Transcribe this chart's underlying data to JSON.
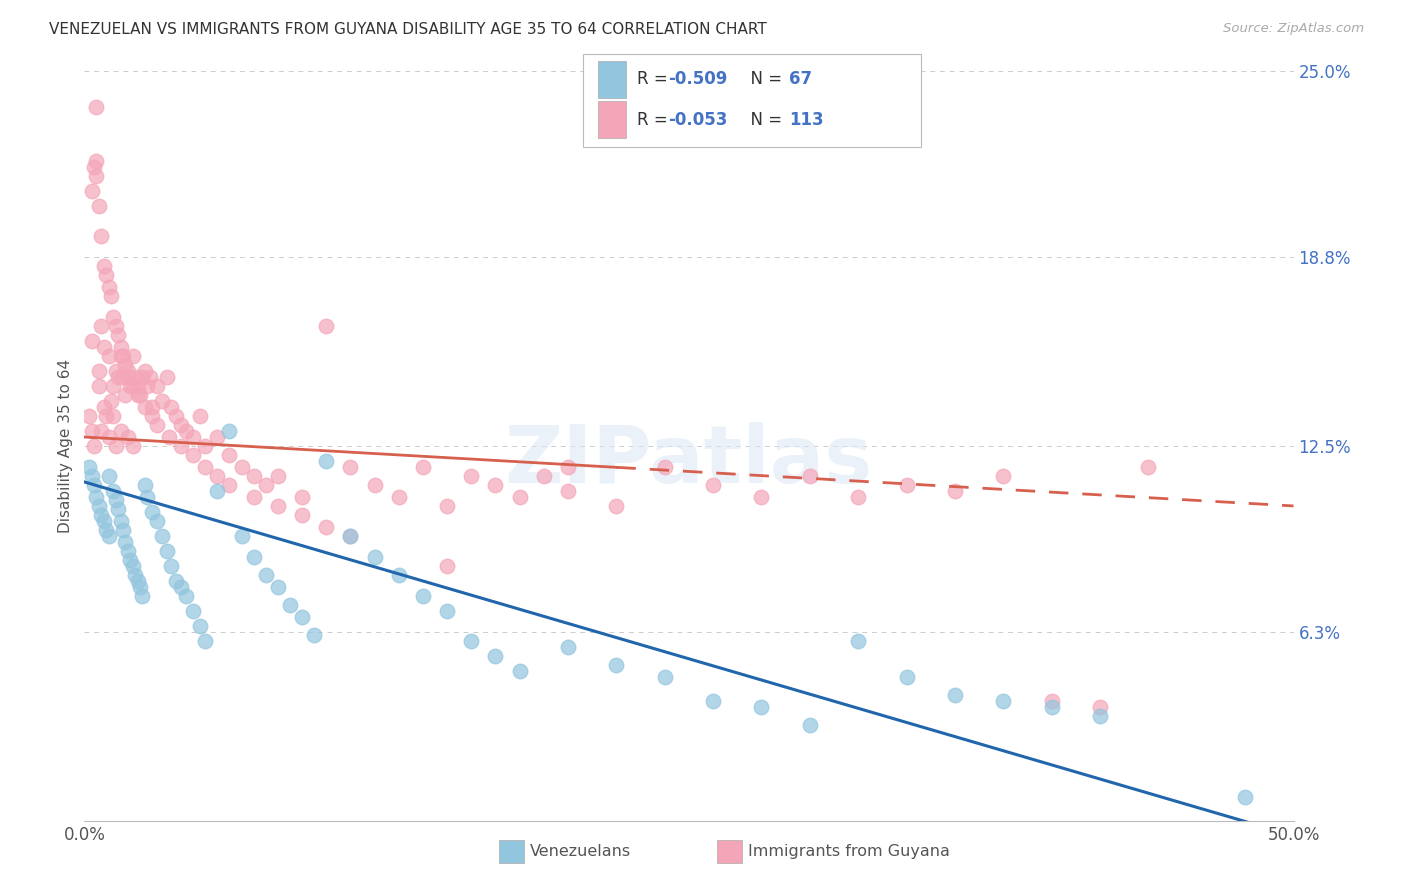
{
  "title": "VENEZUELAN VS IMMIGRANTS FROM GUYANA DISABILITY AGE 35 TO 64 CORRELATION CHART",
  "source": "Source: ZipAtlas.com",
  "ylabel": "Disability Age 35 to 64",
  "xlim": [
    0.0,
    0.5
  ],
  "ylim": [
    0.0,
    0.25
  ],
  "xtick_positions": [
    0.0,
    0.1,
    0.2,
    0.3,
    0.4,
    0.5
  ],
  "xticklabels": [
    "0.0%",
    "",
    "",
    "",
    "",
    "50.0%"
  ],
  "ytick_positions": [
    0.0,
    0.063,
    0.125,
    0.188,
    0.25
  ],
  "ytick_labels": [
    "",
    "6.3%",
    "12.5%",
    "18.8%",
    "25.0%"
  ],
  "watermark": "ZIPatlas",
  "blue_color": "#92c5de",
  "pink_color": "#f4a6b8",
  "blue_line_color": "#2166ac",
  "pink_line_color": "#d6604d",
  "grid_color": "#cccccc",
  "venezuelans_x": [
    0.002,
    0.003,
    0.004,
    0.005,
    0.006,
    0.007,
    0.008,
    0.009,
    0.01,
    0.01,
    0.012,
    0.013,
    0.014,
    0.015,
    0.016,
    0.017,
    0.018,
    0.019,
    0.02,
    0.021,
    0.022,
    0.023,
    0.024,
    0.025,
    0.026,
    0.028,
    0.03,
    0.032,
    0.034,
    0.036,
    0.038,
    0.04,
    0.042,
    0.045,
    0.048,
    0.05,
    0.055,
    0.06,
    0.065,
    0.07,
    0.075,
    0.08,
    0.085,
    0.09,
    0.095,
    0.1,
    0.11,
    0.12,
    0.13,
    0.14,
    0.15,
    0.16,
    0.17,
    0.18,
    0.2,
    0.22,
    0.24,
    0.26,
    0.28,
    0.3,
    0.32,
    0.34,
    0.36,
    0.38,
    0.4,
    0.42,
    0.48
  ],
  "venezuelans_y": [
    0.118,
    0.115,
    0.112,
    0.108,
    0.105,
    0.102,
    0.1,
    0.097,
    0.095,
    0.115,
    0.11,
    0.107,
    0.104,
    0.1,
    0.097,
    0.093,
    0.09,
    0.087,
    0.085,
    0.082,
    0.08,
    0.078,
    0.075,
    0.112,
    0.108,
    0.103,
    0.1,
    0.095,
    0.09,
    0.085,
    0.08,
    0.078,
    0.075,
    0.07,
    0.065,
    0.06,
    0.11,
    0.13,
    0.095,
    0.088,
    0.082,
    0.078,
    0.072,
    0.068,
    0.062,
    0.12,
    0.095,
    0.088,
    0.082,
    0.075,
    0.07,
    0.06,
    0.055,
    0.05,
    0.058,
    0.052,
    0.048,
    0.04,
    0.038,
    0.032,
    0.06,
    0.048,
    0.042,
    0.04,
    0.038,
    0.035,
    0.008
  ],
  "guyana_x": [
    0.002,
    0.003,
    0.003,
    0.004,
    0.005,
    0.005,
    0.006,
    0.006,
    0.007,
    0.007,
    0.008,
    0.008,
    0.009,
    0.01,
    0.01,
    0.011,
    0.012,
    0.012,
    0.013,
    0.013,
    0.014,
    0.015,
    0.015,
    0.016,
    0.017,
    0.018,
    0.018,
    0.019,
    0.02,
    0.02,
    0.021,
    0.022,
    0.023,
    0.024,
    0.025,
    0.026,
    0.027,
    0.028,
    0.03,
    0.032,
    0.034,
    0.036,
    0.038,
    0.04,
    0.042,
    0.045,
    0.048,
    0.05,
    0.055,
    0.06,
    0.065,
    0.07,
    0.075,
    0.08,
    0.09,
    0.1,
    0.11,
    0.12,
    0.13,
    0.14,
    0.15,
    0.16,
    0.17,
    0.18,
    0.19,
    0.2,
    0.22,
    0.24,
    0.26,
    0.28,
    0.3,
    0.32,
    0.34,
    0.36,
    0.38,
    0.4,
    0.42,
    0.44,
    0.003,
    0.004,
    0.005,
    0.006,
    0.007,
    0.008,
    0.009,
    0.01,
    0.011,
    0.012,
    0.013,
    0.014,
    0.015,
    0.016,
    0.017,
    0.018,
    0.02,
    0.022,
    0.025,
    0.028,
    0.03,
    0.035,
    0.04,
    0.045,
    0.05,
    0.055,
    0.06,
    0.07,
    0.08,
    0.09,
    0.1,
    0.11,
    0.15,
    0.2
  ],
  "guyana_y": [
    0.135,
    0.13,
    0.16,
    0.125,
    0.22,
    0.238,
    0.15,
    0.145,
    0.165,
    0.13,
    0.158,
    0.138,
    0.135,
    0.155,
    0.128,
    0.14,
    0.145,
    0.135,
    0.15,
    0.125,
    0.148,
    0.155,
    0.13,
    0.148,
    0.142,
    0.15,
    0.128,
    0.145,
    0.155,
    0.125,
    0.148,
    0.145,
    0.142,
    0.148,
    0.15,
    0.145,
    0.148,
    0.138,
    0.145,
    0.14,
    0.148,
    0.138,
    0.135,
    0.132,
    0.13,
    0.128,
    0.135,
    0.125,
    0.128,
    0.122,
    0.118,
    0.115,
    0.112,
    0.115,
    0.108,
    0.165,
    0.118,
    0.112,
    0.108,
    0.118,
    0.105,
    0.115,
    0.112,
    0.108,
    0.115,
    0.11,
    0.105,
    0.118,
    0.112,
    0.108,
    0.115,
    0.108,
    0.112,
    0.11,
    0.115,
    0.04,
    0.038,
    0.118,
    0.21,
    0.218,
    0.215,
    0.205,
    0.195,
    0.185,
    0.182,
    0.178,
    0.175,
    0.168,
    0.165,
    0.162,
    0.158,
    0.155,
    0.152,
    0.148,
    0.145,
    0.142,
    0.138,
    0.135,
    0.132,
    0.128,
    0.125,
    0.122,
    0.118,
    0.115,
    0.112,
    0.108,
    0.105,
    0.102,
    0.098,
    0.095,
    0.085,
    0.118
  ],
  "blue_line_x0": 0.0,
  "blue_line_y0": 0.113,
  "blue_line_x1": 0.5,
  "blue_line_y1": -0.005,
  "pink_line_x0": 0.0,
  "pink_line_y0": 0.128,
  "pink_line_x1": 0.5,
  "pink_line_y1": 0.105
}
